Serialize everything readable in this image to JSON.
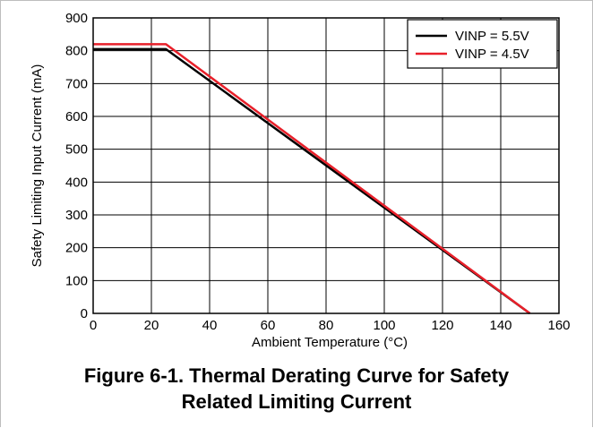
{
  "chart_data": {
    "type": "line",
    "title": "",
    "xlabel": "Ambient Temperature (°C)",
    "ylabel": "Safety Limiting Input Current (mA)",
    "xlim": [
      0,
      160
    ],
    "ylim": [
      0,
      900
    ],
    "xticks": [
      0,
      20,
      40,
      60,
      80,
      100,
      120,
      140,
      160
    ],
    "yticks": [
      0,
      100,
      200,
      300,
      400,
      500,
      600,
      700,
      800,
      900
    ],
    "grid": true,
    "legend_position": "top-right",
    "series": [
      {
        "name": "VINP = 5.5V",
        "color": "#000000",
        "x": [
          0,
          25,
          150
        ],
        "y": [
          805,
          805,
          0
        ]
      },
      {
        "name": "VINP = 4.5V",
        "color": "#e8202a",
        "x": [
          0,
          25,
          150
        ],
        "y": [
          820,
          820,
          0
        ]
      }
    ]
  },
  "caption": {
    "line1": "Figure 6-1. Thermal Derating Curve for Safety",
    "line2": "Related Limiting Current"
  }
}
